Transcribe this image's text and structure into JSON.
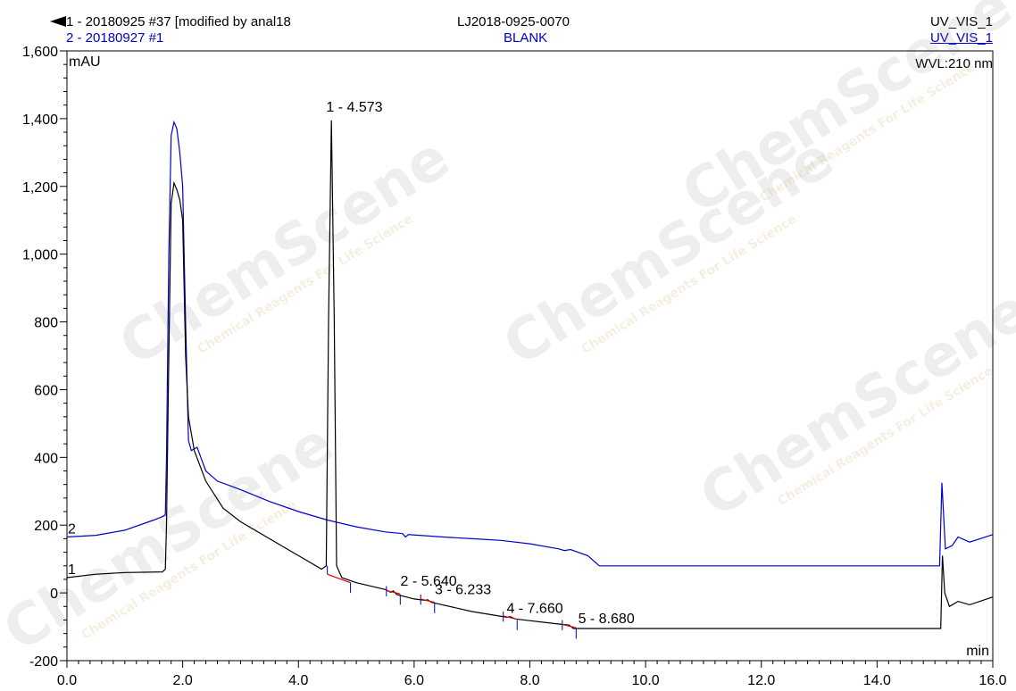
{
  "header": {
    "trace1_label": "1 - 20180925 #37 [modified by anal18",
    "trace2_label": "2 - 20180927 #1",
    "sample_name": "LJ2018-0925-0070",
    "blank_label": "BLANK",
    "channel1": "UV_VIS_1",
    "channel2": "UV_VIS_1",
    "wavelength": "WVL:210 nm",
    "arrow_icon": "left-triangle-icon"
  },
  "watermark": {
    "brand": "ChemScene",
    "tagline": "Chemical Reagents For Life Science"
  },
  "chart_data": {
    "type": "line",
    "ylabel": "mAU",
    "xlabel": "min",
    "xlim": [
      0,
      16
    ],
    "ylim": [
      -200,
      1600
    ],
    "x_ticks": [
      "0.0",
      "2.0",
      "4.0",
      "6.0",
      "8.0",
      "10.0",
      "12.0",
      "14.0",
      "16.0"
    ],
    "y_ticks": [
      "-200",
      "0",
      "200",
      "400",
      "600",
      "800",
      "1,000",
      "1,200",
      "1,400",
      "1,600"
    ],
    "x_tick_values": [
      0,
      2,
      4,
      6,
      8,
      10,
      12,
      14,
      16
    ],
    "y_tick_values": [
      -200,
      0,
      200,
      400,
      600,
      800,
      1000,
      1200,
      1400,
      1600
    ],
    "colors": {
      "trace1": "#000000",
      "trace2": "#0000cc",
      "baseline": "#dd0000"
    },
    "series": [
      {
        "name": "1",
        "color": "#000000",
        "points": [
          [
            0,
            45
          ],
          [
            0.5,
            55
          ],
          [
            1.0,
            60
          ],
          [
            1.65,
            62
          ],
          [
            1.7,
            70
          ],
          [
            1.72,
            200
          ],
          [
            1.76,
            700
          ],
          [
            1.8,
            1150
          ],
          [
            1.85,
            1210
          ],
          [
            1.9,
            1190
          ],
          [
            1.95,
            1160
          ],
          [
            2.0,
            1100
          ],
          [
            2.05,
            700
          ],
          [
            2.1,
            520
          ],
          [
            2.2,
            420
          ],
          [
            2.4,
            330
          ],
          [
            2.7,
            250
          ],
          [
            3.0,
            210
          ],
          [
            3.5,
            160
          ],
          [
            4.0,
            110
          ],
          [
            4.4,
            70
          ],
          [
            4.48,
            80
          ],
          [
            4.52,
            800
          ],
          [
            4.57,
            1395
          ],
          [
            4.62,
            800
          ],
          [
            4.66,
            80
          ],
          [
            4.75,
            45
          ],
          [
            5.0,
            30
          ],
          [
            5.5,
            10
          ],
          [
            5.6,
            2
          ],
          [
            5.64,
            6
          ],
          [
            5.7,
            -5
          ],
          [
            6.0,
            -18
          ],
          [
            6.2,
            -22
          ],
          [
            6.23,
            -20
          ],
          [
            6.3,
            -28
          ],
          [
            7.0,
            -55
          ],
          [
            7.6,
            -72
          ],
          [
            7.66,
            -70
          ],
          [
            7.75,
            -77
          ],
          [
            8.5,
            -92
          ],
          [
            8.68,
            -95
          ],
          [
            8.75,
            -105
          ],
          [
            9.2,
            -105
          ],
          [
            12.0,
            -105
          ],
          [
            15.1,
            -105
          ],
          [
            15.13,
            110
          ],
          [
            15.17,
            0
          ],
          [
            15.25,
            -40
          ],
          [
            15.4,
            -25
          ],
          [
            15.6,
            -35
          ],
          [
            16.0,
            -12
          ]
        ]
      },
      {
        "name": "2",
        "color": "#0000cc",
        "points": [
          [
            0,
            165
          ],
          [
            0.5,
            170
          ],
          [
            1.0,
            185
          ],
          [
            1.5,
            215
          ],
          [
            1.65,
            225
          ],
          [
            1.7,
            230
          ],
          [
            1.72,
            400
          ],
          [
            1.76,
            1000
          ],
          [
            1.8,
            1350
          ],
          [
            1.85,
            1390
          ],
          [
            1.9,
            1370
          ],
          [
            1.95,
            1300
          ],
          [
            2.0,
            1200
          ],
          [
            2.05,
            800
          ],
          [
            2.1,
            450
          ],
          [
            2.15,
            420
          ],
          [
            2.25,
            430
          ],
          [
            2.4,
            360
          ],
          [
            2.6,
            330
          ],
          [
            3.0,
            305
          ],
          [
            3.5,
            270
          ],
          [
            4.0,
            240
          ],
          [
            4.5,
            215
          ],
          [
            5.0,
            195
          ],
          [
            5.5,
            180
          ],
          [
            5.8,
            175
          ],
          [
            5.85,
            165
          ],
          [
            5.9,
            172
          ],
          [
            6.5,
            165
          ],
          [
            7.0,
            160
          ],
          [
            7.5,
            155
          ],
          [
            8.0,
            145
          ],
          [
            8.5,
            130
          ],
          [
            8.6,
            125
          ],
          [
            8.7,
            128
          ],
          [
            9.0,
            110
          ],
          [
            9.2,
            80
          ],
          [
            12.0,
            80
          ],
          [
            15.08,
            80
          ],
          [
            15.12,
            325
          ],
          [
            15.18,
            130
          ],
          [
            15.3,
            140
          ],
          [
            15.4,
            165
          ],
          [
            15.6,
            150
          ],
          [
            16.0,
            172
          ]
        ]
      }
    ],
    "peaks": [
      {
        "label": "1 - 4.573",
        "x": 4.573,
        "y": 1395
      },
      {
        "label": "2 - 5.640",
        "x": 5.64,
        "y": 5
      },
      {
        "label": "3 - 6.233",
        "x": 6.233,
        "y": -20
      },
      {
        "label": "4 - 7.660",
        "x": 7.66,
        "y": -70
      },
      {
        "label": "5 - 8.680",
        "x": 8.68,
        "y": -95
      }
    ],
    "trace_markers": [
      "1",
      "2"
    ]
  }
}
